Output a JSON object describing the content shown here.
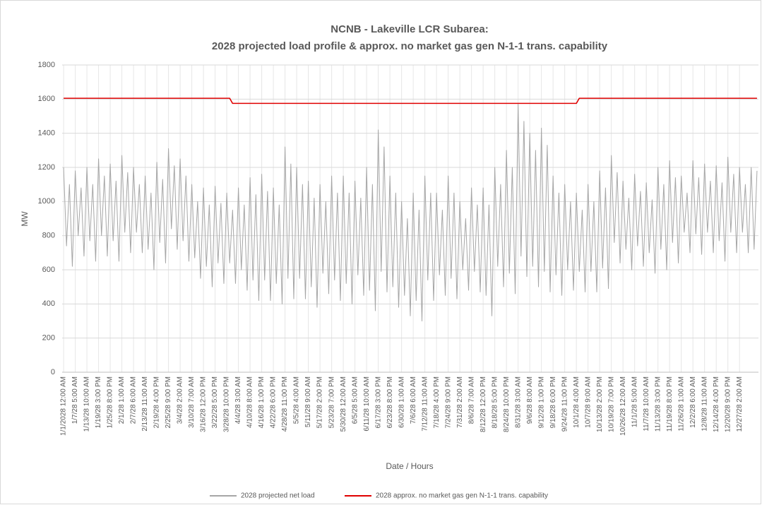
{
  "chart_data": {
    "type": "line",
    "title": "NCNB - Lakeville LCR Subarea:",
    "subtitle": "2028 projected load profile & approx. no market gas gen N-1-1 trans. capability",
    "x_label": "Date / Hours",
    "y_label": "MW",
    "ylim": [
      0,
      1800
    ],
    "yticks": [
      0,
      200,
      400,
      600,
      800,
      1000,
      1200,
      1400,
      1600,
      1800
    ],
    "grid": true,
    "legend": "bottom",
    "categories": [
      "1/1/2028 12:00 AM",
      null,
      null,
      null,
      "1/7/28 5:00 AM",
      null,
      null,
      null,
      "1/13/28 10:00 AM",
      null,
      null,
      null,
      "1/19/28 3:00 PM",
      null,
      null,
      null,
      "1/25/28 8:00 PM",
      null,
      null,
      null,
      "2/1/28 1:00 AM",
      null,
      null,
      null,
      "2/7/28 6:00 AM",
      null,
      null,
      null,
      "2/13/28 11:00 AM",
      null,
      null,
      null,
      "2/19/28 4:00 PM",
      null,
      null,
      null,
      "2/25/28 9:00 PM",
      null,
      null,
      null,
      "3/4/28 2:00 AM",
      null,
      null,
      null,
      "3/10/28 7:00 AM",
      null,
      null,
      null,
      "3/16/28 12:00 PM",
      null,
      null,
      null,
      "3/22/28 5:00 PM",
      null,
      null,
      null,
      "3/28/28 10:00 PM",
      null,
      null,
      null,
      "4/4/28 3:00 AM",
      null,
      null,
      null,
      "4/10/28 8:00 AM",
      null,
      null,
      null,
      "4/16/28 1:00 PM",
      null,
      null,
      null,
      "4/22/28 6:00 PM",
      null,
      null,
      null,
      "4/28/28 11:00 PM",
      null,
      null,
      null,
      "5/5/28 4:00 AM",
      null,
      null,
      null,
      "5/11/28 9:00 AM",
      null,
      null,
      null,
      "5/17/28 2:00 PM",
      null,
      null,
      null,
      "5/23/28 7:00 PM",
      null,
      null,
      null,
      "5/30/28 12:00 AM",
      null,
      null,
      null,
      "6/5/28 5:00 AM",
      null,
      null,
      null,
      "6/11/28 10:00 AM",
      null,
      null,
      null,
      "6/17/28 3:00 PM",
      null,
      null,
      null,
      "6/23/28 8:00 PM",
      null,
      null,
      null,
      "6/30/28 1:00 AM",
      null,
      null,
      null,
      "7/6/28 6:00 AM",
      null,
      null,
      null,
      "7/12/28 11:00 AM",
      null,
      null,
      null,
      "7/18/28 4:00 PM",
      null,
      null,
      null,
      "7/24/28 9:00 PM",
      null,
      null,
      null,
      "7/31/28 2:00 AM",
      null,
      null,
      null,
      "8/6/28 7:00 AM",
      null,
      null,
      null,
      "8/12/28 12:00 PM",
      null,
      null,
      null,
      "8/18/28 5:00 PM",
      null,
      null,
      null,
      "8/24/28 10:00 PM",
      null,
      null,
      null,
      "8/31/28 3:00 AM",
      null,
      null,
      null,
      "9/6/28 8:00 AM",
      null,
      null,
      null,
      "9/12/28 1:00 PM",
      null,
      null,
      null,
      "9/18/28 6:00 PM",
      null,
      null,
      null,
      "9/24/28 11:00 PM",
      null,
      null,
      null,
      "10/1/28 4:00 AM",
      null,
      null,
      null,
      "10/7/28 9:00 AM",
      null,
      null,
      null,
      "10/13/28 2:00 PM",
      null,
      null,
      null,
      "10/19/28 7:00 PM",
      null,
      null,
      null,
      "10/26/28 12:00 AM",
      null,
      null,
      null,
      "11/1/28 5:00 AM",
      null,
      null,
      null,
      "11/7/28 10:00 AM",
      null,
      null,
      null,
      "11/13/28 3:00 PM",
      null,
      null,
      null,
      "11/19/28 8:00 PM",
      null,
      null,
      null,
      "11/26/28 1:00 AM",
      null,
      null,
      null,
      "12/2/28 6:00 AM",
      null,
      null,
      null,
      "12/8/28 11:00 AM",
      null,
      null,
      null,
      "12/14/28 4:00 PM",
      null,
      null,
      null,
      "12/20/28 9:00 PM",
      null,
      null,
      null,
      "12/27/28 2:00 AM",
      null,
      null,
      null,
      null,
      null,
      null
    ],
    "series": [
      {
        "name": "2028 projected net load",
        "color": "#a6a6a6",
        "values": [
          1200,
          740,
          1100,
          620,
          1180,
          800,
          1080,
          680,
          1200,
          770,
          1100,
          650,
          1250,
          800,
          1150,
          680,
          1220,
          770,
          1120,
          650,
          1270,
          820,
          1170,
          700,
          1200,
          820,
          1100,
          700,
          1150,
          720,
          1050,
          600,
          1230,
          760,
          1130,
          640,
          1310,
          840,
          1210,
          720,
          1250,
          770,
          1150,
          650,
          1100,
          670,
          1000,
          550,
          1080,
          620,
          980,
          500,
          1090,
          640,
          990,
          520,
          1050,
          640,
          950,
          520,
          1080,
          600,
          980,
          480,
          1140,
          540,
          1040,
          420,
          1160,
          540,
          1060,
          420,
          1080,
          520,
          980,
          400,
          1320,
          550,
          1220,
          430,
          1200,
          550,
          1100,
          430,
          1120,
          500,
          1020,
          380,
          1100,
          580,
          1000,
          460,
          1150,
          540,
          1050,
          420,
          1150,
          520,
          1050,
          400,
          1120,
          570,
          1020,
          450,
          1200,
          480,
          1100,
          360,
          1420,
          590,
          1320,
          470,
          1150,
          500,
          1050,
          380,
          1000,
          450,
          900,
          330,
          1050,
          420,
          950,
          300,
          1150,
          540,
          1050,
          420,
          1050,
          570,
          950,
          450,
          1150,
          550,
          1050,
          430,
          1000,
          600,
          900,
          480,
          1080,
          590,
          980,
          470,
          1080,
          450,
          980,
          330,
          1200,
          620,
          1100,
          500,
          1300,
          580,
          1200,
          460,
          1570,
          680,
          1470,
          560,
          1400,
          620,
          1300,
          500,
          1430,
          590,
          1330,
          470,
          1150,
          570,
          1050,
          450,
          1100,
          600,
          1000,
          480,
          1050,
          590,
          950,
          470,
          1100,
          590,
          1000,
          470,
          1180,
          610,
          1080,
          490,
          1270,
          760,
          1170,
          640,
          1120,
          720,
          1020,
          600,
          1160,
          740,
          1060,
          620,
          1110,
          700,
          1010,
          580,
          1200,
          720,
          1100,
          600,
          1240,
          760,
          1140,
          640,
          1150,
          820,
          1050,
          700,
          1240,
          810,
          1140,
          690,
          1220,
          820,
          1120,
          700,
          1210,
          770,
          1110,
          650,
          1260,
          820,
          1160,
          700,
          1200,
          820,
          1100,
          700,
          1200,
          720,
          1180
        ]
      },
      {
        "name": "2028 approx. no market gas gen N-1-1 trans. capability",
        "color": "#e00000",
        "values": [
          1605,
          1605,
          1605,
          1605,
          1605,
          1605,
          1605,
          1605,
          1605,
          1605,
          1605,
          1605,
          1605,
          1605,
          1605,
          1605,
          1605,
          1605,
          1605,
          1605,
          1605,
          1605,
          1605,
          1605,
          1605,
          1605,
          1605,
          1605,
          1605,
          1605,
          1605,
          1605,
          1605,
          1605,
          1605,
          1605,
          1605,
          1605,
          1605,
          1605,
          1605,
          1605,
          1605,
          1605,
          1605,
          1605,
          1605,
          1605,
          1605,
          1605,
          1605,
          1605,
          1605,
          1605,
          1605,
          1605,
          1605,
          1605,
          1575,
          1575,
          1575,
          1575,
          1575,
          1575,
          1575,
          1575,
          1575,
          1575,
          1575,
          1575,
          1575,
          1575,
          1575,
          1575,
          1575,
          1575,
          1575,
          1575,
          1575,
          1575,
          1575,
          1575,
          1575,
          1575,
          1575,
          1575,
          1575,
          1575,
          1575,
          1575,
          1575,
          1575,
          1575,
          1575,
          1575,
          1575,
          1575,
          1575,
          1575,
          1575,
          1575,
          1575,
          1575,
          1575,
          1575,
          1575,
          1575,
          1575,
          1575,
          1575,
          1575,
          1575,
          1575,
          1575,
          1575,
          1575,
          1575,
          1575,
          1575,
          1575,
          1575,
          1575,
          1575,
          1575,
          1575,
          1575,
          1575,
          1575,
          1575,
          1575,
          1575,
          1575,
          1575,
          1575,
          1575,
          1575,
          1575,
          1575,
          1575,
          1575,
          1575,
          1575,
          1575,
          1575,
          1575,
          1575,
          1575,
          1575,
          1575,
          1575,
          1575,
          1575,
          1575,
          1575,
          1575,
          1575,
          1575,
          1575,
          1575,
          1575,
          1575,
          1575,
          1575,
          1575,
          1575,
          1575,
          1575,
          1575,
          1575,
          1575,
          1575,
          1575,
          1575,
          1575,
          1575,
          1575,
          1575,
          1605,
          1605,
          1605,
          1605,
          1605,
          1605,
          1605,
          1605,
          1605,
          1605,
          1605,
          1605,
          1605,
          1605,
          1605,
          1605,
          1605,
          1605,
          1605,
          1605,
          1605,
          1605,
          1605,
          1605,
          1605,
          1605,
          1605,
          1605,
          1605,
          1605,
          1605,
          1605,
          1605,
          1605,
          1605,
          1605,
          1605,
          1605,
          1605,
          1605,
          1605,
          1605,
          1605,
          1605,
          1605,
          1605,
          1605,
          1605,
          1605,
          1605,
          1605,
          1605,
          1605,
          1605,
          1605,
          1605,
          1605,
          1605,
          1605,
          1605,
          1605,
          1605
        ]
      }
    ]
  }
}
